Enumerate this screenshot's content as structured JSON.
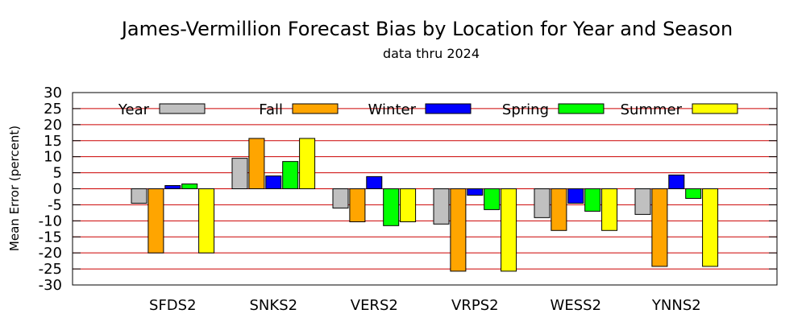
{
  "chart_data": {
    "type": "bar",
    "title": "James-Vermillion Forecast Bias by Location for Year and Season",
    "subtitle": "data thru 2024",
    "ylabel": "Mean Error (percent)",
    "xlabel": "",
    "ylim": [
      -30,
      30
    ],
    "yticks": [
      30,
      25,
      20,
      15,
      10,
      5,
      0,
      -5,
      -10,
      -15,
      -20,
      -25,
      -30
    ],
    "grid": true,
    "grid_color": "#cc0000",
    "legend_position": "top",
    "categories": [
      "SFDS2",
      "SNKS2",
      "VERS2",
      "VRPS2",
      "WESS2",
      "YNNS2"
    ],
    "series": [
      {
        "name": "Year",
        "color": "#c0c0c0",
        "values": [
          -4.5,
          9.5,
          -6,
          -11,
          -9,
          -8
        ]
      },
      {
        "name": "Fall",
        "color": "#ffa500",
        "values": [
          -20,
          15.7,
          -10.3,
          -25.7,
          -13,
          -24.2
        ]
      },
      {
        "name": "Winter",
        "color": "#0000ff",
        "values": [
          1,
          4,
          3.8,
          -2,
          -4.5,
          4.3
        ]
      },
      {
        "name": "Spring",
        "color": "#00ff00",
        "values": [
          1.5,
          8.5,
          -11.5,
          -6.5,
          -7,
          -3
        ]
      },
      {
        "name": "Summer",
        "color": "#ffff00",
        "values": [
          -20,
          15.7,
          -10.3,
          -25.7,
          -13,
          -24.2
        ]
      }
    ]
  }
}
